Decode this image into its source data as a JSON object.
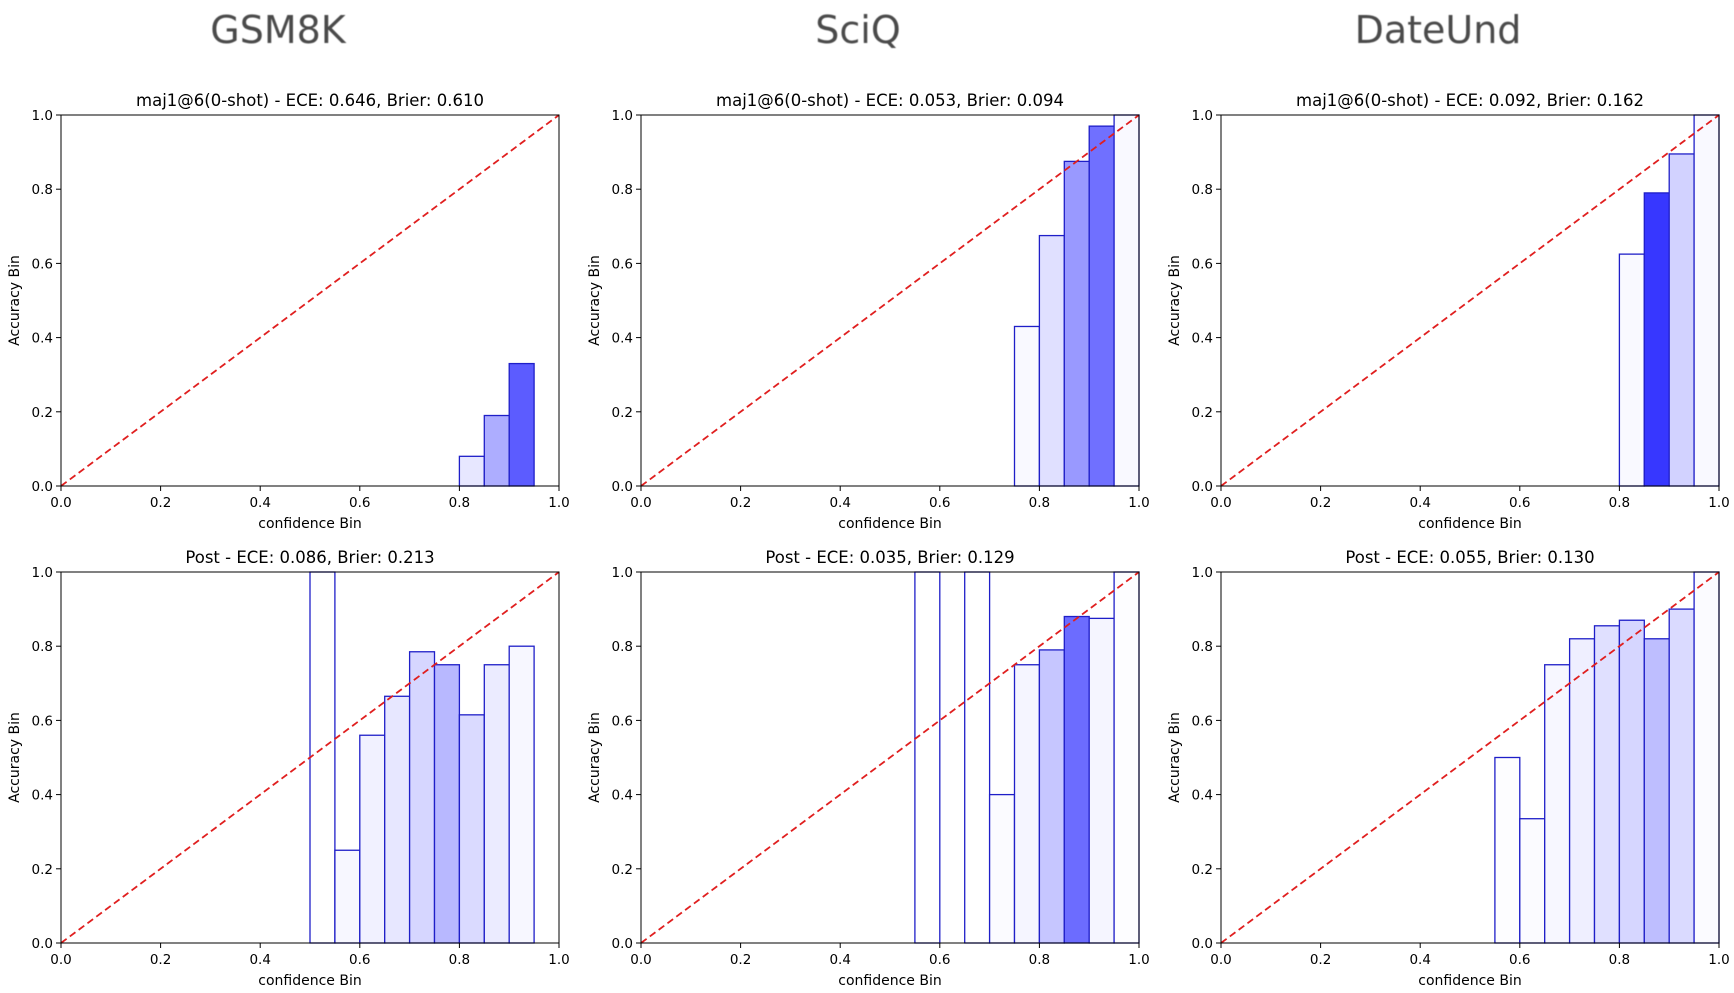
{
  "column_titles": [
    "GSM8K",
    "SciQ",
    "DateUnd"
  ],
  "style": {
    "bar_edge": "#1f1fc8",
    "diagonal": "#e01f1f",
    "axis": "#000000",
    "bar_fill_base": "#3333ff"
  },
  "chart_data": [
    {
      "type": "bar",
      "dataset": "GSM8K",
      "title": "maj1@6(0-shot) - ECE: 0.646, Brier: 0.610",
      "xlabel": "confidence Bin",
      "ylabel": "Accuracy Bin",
      "xlim": [
        0,
        1
      ],
      "ylim": [
        0,
        1
      ],
      "xticks": [
        "0.0",
        "0.2",
        "0.4",
        "0.6",
        "0.8",
        "1.0"
      ],
      "yticks": [
        "0.0",
        "0.2",
        "0.4",
        "0.6",
        "0.8",
        "1.0"
      ],
      "bin_width": 0.05,
      "bins": [
        {
          "start": 0.8,
          "accuracy": 0.08,
          "shade": 0.12
        },
        {
          "start": 0.85,
          "accuracy": 0.19,
          "shade": 0.4
        },
        {
          "start": 0.9,
          "accuracy": 0.33,
          "shade": 0.8
        }
      ],
      "diagonal": true
    },
    {
      "type": "bar",
      "dataset": "SciQ",
      "title": "maj1@6(0-shot) - ECE: 0.053, Brier: 0.094",
      "xlabel": "confidence Bin",
      "ylabel": "Accuracy Bin",
      "xlim": [
        0,
        1
      ],
      "ylim": [
        0,
        1
      ],
      "xticks": [
        "0.0",
        "0.2",
        "0.4",
        "0.6",
        "0.8",
        "1.0"
      ],
      "yticks": [
        "0.0",
        "0.2",
        "0.4",
        "0.6",
        "0.8",
        "1.0"
      ],
      "bin_width": 0.05,
      "bins": [
        {
          "start": 0.75,
          "accuracy": 0.43,
          "shade": 0.03
        },
        {
          "start": 0.8,
          "accuracy": 0.675,
          "shade": 0.15
        },
        {
          "start": 0.85,
          "accuracy": 0.875,
          "shade": 0.5
        },
        {
          "start": 0.9,
          "accuracy": 0.97,
          "shade": 0.7
        },
        {
          "start": 0.95,
          "accuracy": 1.0,
          "shade": 0.03
        }
      ],
      "diagonal": true
    },
    {
      "type": "bar",
      "dataset": "DateUnd",
      "title": "maj1@6(0-shot) - ECE: 0.092, Brier: 0.162",
      "xlabel": "confidence Bin",
      "ylabel": "Accuracy Bin",
      "xlim": [
        0,
        1
      ],
      "ylim": [
        0,
        1
      ],
      "xticks": [
        "0.0",
        "0.2",
        "0.4",
        "0.6",
        "0.8",
        "1.0"
      ],
      "yticks": [
        "0.0",
        "0.2",
        "0.4",
        "0.6",
        "0.8",
        "1.0"
      ],
      "bin_width": 0.05,
      "bins": [
        {
          "start": 0.8,
          "accuracy": 0.625,
          "shade": 0.03
        },
        {
          "start": 0.85,
          "accuracy": 0.79,
          "shade": 0.98
        },
        {
          "start": 0.9,
          "accuracy": 0.895,
          "shade": 0.22
        },
        {
          "start": 0.95,
          "accuracy": 1.0,
          "shade": 0.03
        }
      ],
      "diagonal": true
    },
    {
      "type": "bar",
      "dataset": "GSM8K",
      "title": "Post - ECE: 0.086, Brier: 0.213",
      "xlabel": "confidence Bin",
      "ylabel": "Accuracy Bin",
      "xlim": [
        0,
        1
      ],
      "ylim": [
        0,
        1
      ],
      "xticks": [
        "0.0",
        "0.2",
        "0.4",
        "0.6",
        "0.8",
        "1.0"
      ],
      "yticks": [
        "0.0",
        "0.2",
        "0.4",
        "0.6",
        "0.8",
        "1.0"
      ],
      "bin_width": 0.05,
      "bins": [
        {
          "start": 0.5,
          "accuracy": 1.0,
          "shade": 0.0
        },
        {
          "start": 0.55,
          "accuracy": 0.25,
          "shade": 0.04
        },
        {
          "start": 0.6,
          "accuracy": 0.56,
          "shade": 0.07
        },
        {
          "start": 0.65,
          "accuracy": 0.665,
          "shade": 0.12
        },
        {
          "start": 0.7,
          "accuracy": 0.785,
          "shade": 0.2
        },
        {
          "start": 0.75,
          "accuracy": 0.75,
          "shade": 0.35
        },
        {
          "start": 0.8,
          "accuracy": 0.615,
          "shade": 0.18
        },
        {
          "start": 0.85,
          "accuracy": 0.75,
          "shade": 0.1
        },
        {
          "start": 0.9,
          "accuracy": 0.8,
          "shade": 0.04
        }
      ],
      "diagonal": true
    },
    {
      "type": "bar",
      "dataset": "SciQ",
      "title": "Post - ECE: 0.035, Brier: 0.129",
      "xlabel": "confidence Bin",
      "ylabel": "Accuracy Bin",
      "xlim": [
        0,
        1
      ],
      "ylim": [
        0,
        1
      ],
      "xticks": [
        "0.0",
        "0.2",
        "0.4",
        "0.6",
        "0.8",
        "1.0"
      ],
      "yticks": [
        "0.0",
        "0.2",
        "0.4",
        "0.6",
        "0.8",
        "1.0"
      ],
      "bin_width": 0.05,
      "bins": [
        {
          "start": 0.55,
          "accuracy": 1.0,
          "shade": 0.0
        },
        {
          "start": 0.65,
          "accuracy": 1.0,
          "shade": 0.0
        },
        {
          "start": 0.7,
          "accuracy": 0.4,
          "shade": 0.02
        },
        {
          "start": 0.75,
          "accuracy": 0.75,
          "shade": 0.05
        },
        {
          "start": 0.8,
          "accuracy": 0.79,
          "shade": 0.28
        },
        {
          "start": 0.85,
          "accuracy": 0.88,
          "shade": 0.72
        },
        {
          "start": 0.9,
          "accuracy": 0.875,
          "shade": 0.05
        },
        {
          "start": 0.95,
          "accuracy": 1.0,
          "shade": 0.01
        }
      ],
      "diagonal": true
    },
    {
      "type": "bar",
      "dataset": "DateUnd",
      "title": "Post - ECE: 0.055, Brier: 0.130",
      "xlabel": "confidence Bin",
      "ylabel": "Accuracy Bin",
      "xlim": [
        0,
        1
      ],
      "ylim": [
        0,
        1
      ],
      "xticks": [
        "0.0",
        "0.2",
        "0.4",
        "0.6",
        "0.8",
        "1.0"
      ],
      "yticks": [
        "0.0",
        "0.2",
        "0.4",
        "0.6",
        "0.8",
        "1.0"
      ],
      "bin_width": 0.05,
      "bins": [
        {
          "start": 0.55,
          "accuracy": 0.5,
          "shade": 0.01
        },
        {
          "start": 0.6,
          "accuracy": 0.335,
          "shade": 0.02
        },
        {
          "start": 0.65,
          "accuracy": 0.75,
          "shade": 0.04
        },
        {
          "start": 0.7,
          "accuracy": 0.82,
          "shade": 0.08
        },
        {
          "start": 0.75,
          "accuracy": 0.855,
          "shade": 0.15
        },
        {
          "start": 0.8,
          "accuracy": 0.87,
          "shade": 0.2
        },
        {
          "start": 0.85,
          "accuracy": 0.82,
          "shade": 0.32
        },
        {
          "start": 0.9,
          "accuracy": 0.9,
          "shade": 0.18
        },
        {
          "start": 0.95,
          "accuracy": 1.0,
          "shade": 0.02
        }
      ],
      "diagonal": true
    }
  ]
}
